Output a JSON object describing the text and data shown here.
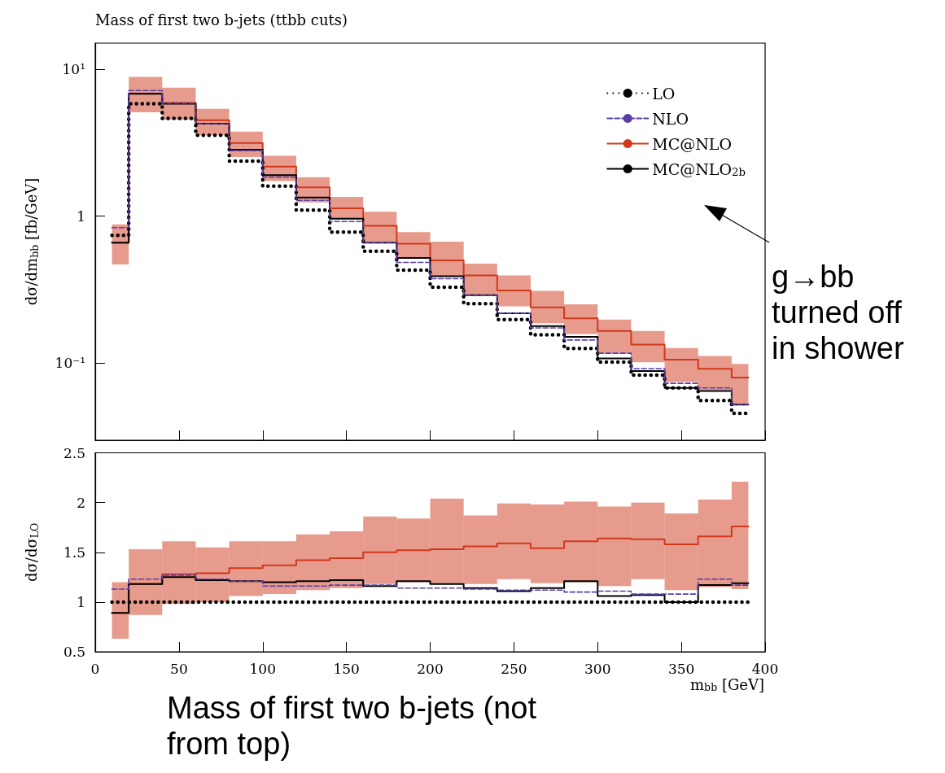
{
  "chart_data": [
    {
      "type": "step",
      "title": "Mass of first two b-jets (ttbb cuts)",
      "ylabel": "dσ/dm$_{bb}$ [fb/GeV]",
      "x": [
        10,
        30,
        50,
        70,
        90,
        110,
        130,
        150,
        170,
        190,
        210,
        230,
        250,
        270,
        290,
        310,
        330,
        350,
        370,
        390
      ],
      "xlim": [
        0,
        400
      ],
      "xticks": [
        0,
        50,
        100,
        150,
        200,
        250,
        300,
        350,
        400
      ],
      "log": "y",
      "ylim": [
        0.03,
        15
      ],
      "yticks": [
        {
          "value": 0.1,
          "label": "10⁻¹"
        },
        1,
        {
          "value": 10,
          "label": "10¹"
        }
      ],
      "tick_labels": "y",
      "grid": false,
      "legend": "top right",
      "annotations": [
        "g→bb turned off in shower"
      ],
      "series": [
        {
          "name": "LO",
          "color": "#000000",
          "line_style": "dotted",
          "values": [
            0.74,
            5.8,
            4.62,
            3.55,
            2.37,
            1.6,
            1.1,
            0.78,
            0.578,
            0.43,
            0.329,
            0.254,
            0.198,
            0.156,
            0.126,
            0.102,
            0.083,
            0.068,
            0.0558,
            0.0456
          ]
        },
        {
          "name": "NLO",
          "color": "#5a3ea8",
          "line_style": "dashed",
          "values": [
            0.836,
            7.15,
            5.85,
            4.25,
            2.79,
            1.84,
            1.28,
            0.92,
            0.66,
            0.485,
            0.376,
            0.29,
            0.219,
            0.174,
            0.144,
            0.117,
            0.092,
            0.073,
            0.068,
            0.0525
          ]
        },
        {
          "name": "MC@NLO",
          "color": "#d0381c",
          "line_style": "solid",
          "values": [
            0.66,
            6.8,
            5.89,
            4.49,
            3.14,
            2.17,
            1.57,
            1.13,
            0.86,
            0.65,
            0.5,
            0.395,
            0.312,
            0.24,
            0.202,
            0.166,
            0.134,
            0.106,
            0.0916,
            0.08
          ],
          "lower": [
            0.47,
            5.08,
            4.53,
            3.55,
            2.52,
            1.73,
            1.24,
            0.95,
            0.67,
            0.52,
            0.39,
            0.29,
            0.244,
            0.187,
            0.158,
            0.117,
            0.1016,
            0.0746,
            0.0657,
            0.053
          ],
          "upper": [
            0.88,
            8.85,
            7.46,
            5.37,
            3.76,
            2.57,
            1.84,
            1.35,
            1.07,
            0.78,
            0.67,
            0.475,
            0.395,
            0.31,
            0.252,
            0.198,
            0.166,
            0.127,
            0.112,
            0.099
          ]
        },
        {
          "name": "MC@NLO$_{2b}$",
          "color": "#000000",
          "line_style": "solid",
          "values": [
            0.66,
            6.79,
            5.8,
            4.25,
            2.83,
            1.9,
            1.34,
            0.96,
            0.66,
            0.52,
            0.39,
            0.29,
            0.219,
            0.179,
            0.151,
            0.108,
            0.0885,
            0.068,
            0.0648,
            0.0523
          ]
        }
      ]
    },
    {
      "type": "step",
      "ylabel": "dσ/dσ$_{LO}$",
      "xlabel": "m$_{bb}$ [GeV]",
      "x": [
        10,
        30,
        50,
        70,
        90,
        110,
        130,
        150,
        170,
        190,
        210,
        230,
        250,
        270,
        290,
        310,
        330,
        350,
        370,
        390
      ],
      "xlim": [
        0,
        400
      ],
      "xticks": [
        0,
        50,
        100,
        150,
        200,
        250,
        300,
        350,
        400
      ],
      "ylim": [
        0.5,
        2.5
      ],
      "yticks": [
        0.5,
        1,
        1.5,
        2,
        2.5
      ],
      "grid": false,
      "legend": false,
      "annotations": [
        "Mass of first two b-jets (not from top)"
      ],
      "series": [
        {
          "color": "#000000",
          "line_style": "dotted",
          "values": [
            1,
            1,
            1,
            1,
            1,
            1,
            1,
            1,
            1,
            1,
            1,
            1,
            1,
            1,
            1,
            1,
            1,
            1,
            1,
            1
          ]
        },
        {
          "color": "#5a3ea8",
          "line_style": "dashed",
          "values": [
            1.13,
            1.23,
            1.27,
            1.23,
            1.21,
            1.16,
            1.16,
            1.17,
            1.17,
            1.14,
            1.14,
            1.13,
            1.12,
            1.12,
            1.1,
            1.11,
            1.08,
            1.08,
            1.23,
            1.17
          ]
        },
        {
          "color": "#d0381c",
          "line_style": "solid",
          "values": [
            0.89,
            1.18,
            1.28,
            1.29,
            1.34,
            1.37,
            1.42,
            1.44,
            1.5,
            1.52,
            1.53,
            1.56,
            1.59,
            1.54,
            1.61,
            1.64,
            1.63,
            1.58,
            1.66,
            1.76
          ],
          "lower": [
            0.63,
            0.87,
            0.98,
            1.0,
            1.06,
            1.08,
            1.12,
            1.14,
            1.18,
            1.2,
            1.19,
            1.18,
            1.23,
            1.19,
            1.2,
            1.16,
            1.23,
            1.12,
            1.15,
            1.13
          ],
          "upper": [
            1.2,
            1.53,
            1.61,
            1.55,
            1.61,
            1.61,
            1.68,
            1.71,
            1.86,
            1.84,
            2.04,
            1.87,
            1.99,
            1.98,
            2.01,
            1.96,
            2.0,
            1.89,
            2.03,
            2.21
          ]
        },
        {
          "color": "#000000",
          "line_style": "solid",
          "values": [
            0.89,
            1.18,
            1.25,
            1.22,
            1.21,
            1.2,
            1.21,
            1.22,
            1.16,
            1.21,
            1.18,
            1.14,
            1.11,
            1.14,
            1.21,
            1.06,
            1.07,
            1.0,
            1.17,
            1.19
          ]
        }
      ]
    }
  ]
}
